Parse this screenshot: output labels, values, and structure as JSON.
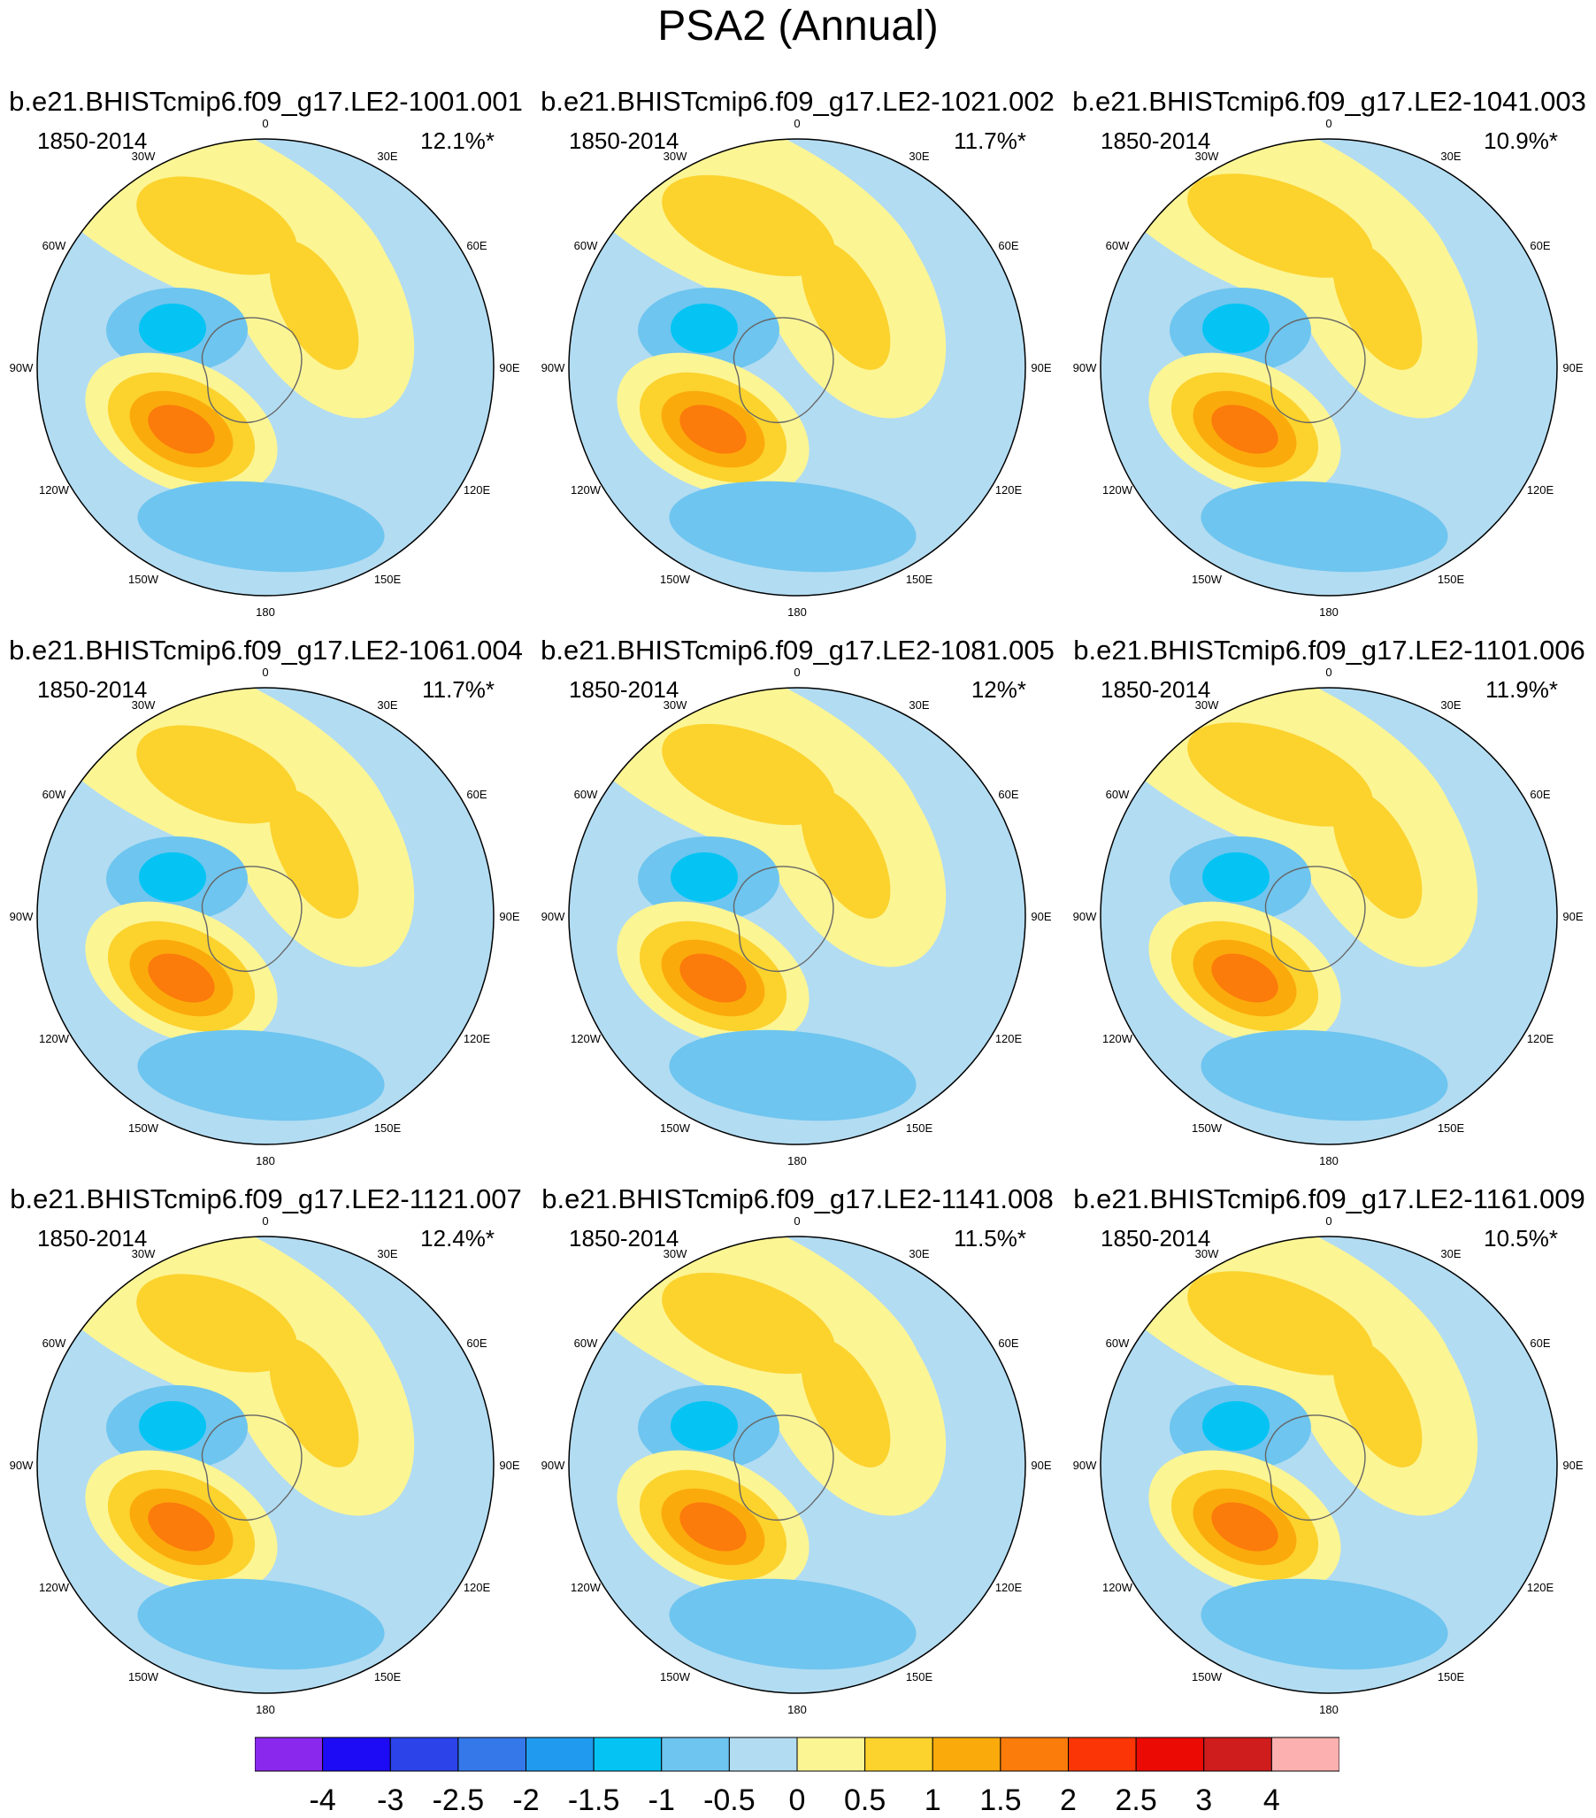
{
  "title": "PSA2 (Annual)",
  "period": "1850-2014",
  "lon_labels": [
    "0",
    "30E",
    "60E",
    "90E",
    "120E",
    "150E",
    "180",
    "150W",
    "120W",
    "90W",
    "60W",
    "30W"
  ],
  "panels": [
    {
      "title": "b.e21.BHISTcmip6.f09_g17.LE2-1001.001",
      "pct": "12.1%*"
    },
    {
      "title": "b.e21.BHISTcmip6.f09_g17.LE2-1021.002",
      "pct": "11.7%*"
    },
    {
      "title": "b.e21.BHISTcmip6.f09_g17.LE2-1041.003",
      "pct": "10.9%*"
    },
    {
      "title": "b.e21.BHISTcmip6.f09_g17.LE2-1061.004",
      "pct": "11.7%*"
    },
    {
      "title": "b.e21.BHISTcmip6.f09_g17.LE2-1081.005",
      "pct": "12%*"
    },
    {
      "title": "b.e21.BHISTcmip6.f09_g17.LE2-1101.006",
      "pct": "11.9%*"
    },
    {
      "title": "b.e21.BHISTcmip6.f09_g17.LE2-1121.007",
      "pct": "12.4%*"
    },
    {
      "title": "b.e21.BHISTcmip6.f09_g17.LE2-1141.008",
      "pct": "11.5%*"
    },
    {
      "title": "b.e21.BHISTcmip6.f09_g17.LE2-1161.009",
      "pct": "10.5%*"
    }
  ],
  "colorbar": {
    "labels": [
      "-4",
      "-3",
      "-2.5",
      "-2",
      "-1.5",
      "-1",
      "-0.5",
      "0",
      "0.5",
      "1",
      "1.5",
      "2",
      "2.5",
      "3",
      "4"
    ],
    "colors": [
      "#8a28ee",
      "#1d0bf5",
      "#2b43e8",
      "#3578ea",
      "#1f9aef",
      "#05c4f3",
      "#6ec5ef",
      "#b2dcf2",
      "#fcf594",
      "#fcd22d",
      "#fbaa0b",
      "#fb7b0b",
      "#fb3505",
      "#ec0a05",
      "#cf1c1c",
      "#fcb0b0"
    ]
  }
}
